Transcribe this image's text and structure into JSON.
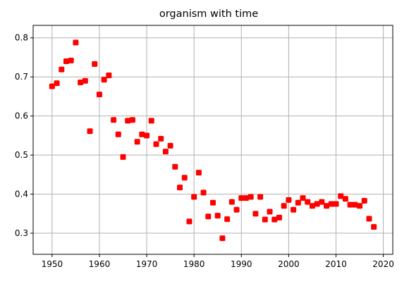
{
  "chart_data": {
    "type": "scatter",
    "title": "organism with time",
    "xlabel": "",
    "ylabel": "",
    "xlim": [
      1946,
      2022
    ],
    "ylim": [
      0.246,
      0.832
    ],
    "xticks": [
      1950,
      1960,
      1970,
      1980,
      1990,
      2000,
      2010,
      2020
    ],
    "yticks": [
      0.3,
      0.4,
      0.5,
      0.6,
      0.7,
      0.8
    ],
    "grid": true,
    "marker": "square",
    "color": "#ff0000",
    "series": [
      {
        "x": [
          1950,
          1951,
          1952,
          1953,
          1954,
          1955,
          1956,
          1957,
          1958,
          1959,
          1960,
          1961,
          1962,
          1963,
          1964,
          1965,
          1966,
          1967,
          1968,
          1969,
          1970,
          1971,
          1972,
          1973,
          1974,
          1975,
          1976,
          1977,
          1978,
          1979,
          1980,
          1981,
          1982,
          1983,
          1984,
          1985,
          1986,
          1987,
          1988,
          1989,
          1990,
          1991,
          1992,
          1993,
          1994,
          1995,
          1996,
          1997,
          1998,
          1999,
          2000,
          2001,
          2002,
          2003,
          2004,
          2005,
          2006,
          2007,
          2008,
          2009,
          2010,
          2011,
          2012,
          2013,
          2014,
          2015,
          2016,
          2017,
          2018
        ],
        "y": [
          0.676,
          0.684,
          0.719,
          0.74,
          0.742,
          0.788,
          0.686,
          0.69,
          0.561,
          0.733,
          0.655,
          0.693,
          0.704,
          0.59,
          0.553,
          0.495,
          0.588,
          0.59,
          0.534,
          0.553,
          0.55,
          0.588,
          0.528,
          0.542,
          0.509,
          0.524,
          0.47,
          0.417,
          0.442,
          0.33,
          0.393,
          0.455,
          0.404,
          0.343,
          0.378,
          0.345,
          0.287,
          0.336,
          0.38,
          0.36,
          0.39,
          0.39,
          0.393,
          0.35,
          0.393,
          0.335,
          0.355,
          0.335,
          0.34,
          0.37,
          0.385,
          0.36,
          0.378,
          0.39,
          0.38,
          0.37,
          0.375,
          0.38,
          0.37,
          0.375,
          0.375,
          0.395,
          0.388,
          0.373,
          0.373,
          0.37,
          0.383,
          0.337,
          0.316
        ]
      }
    ]
  }
}
